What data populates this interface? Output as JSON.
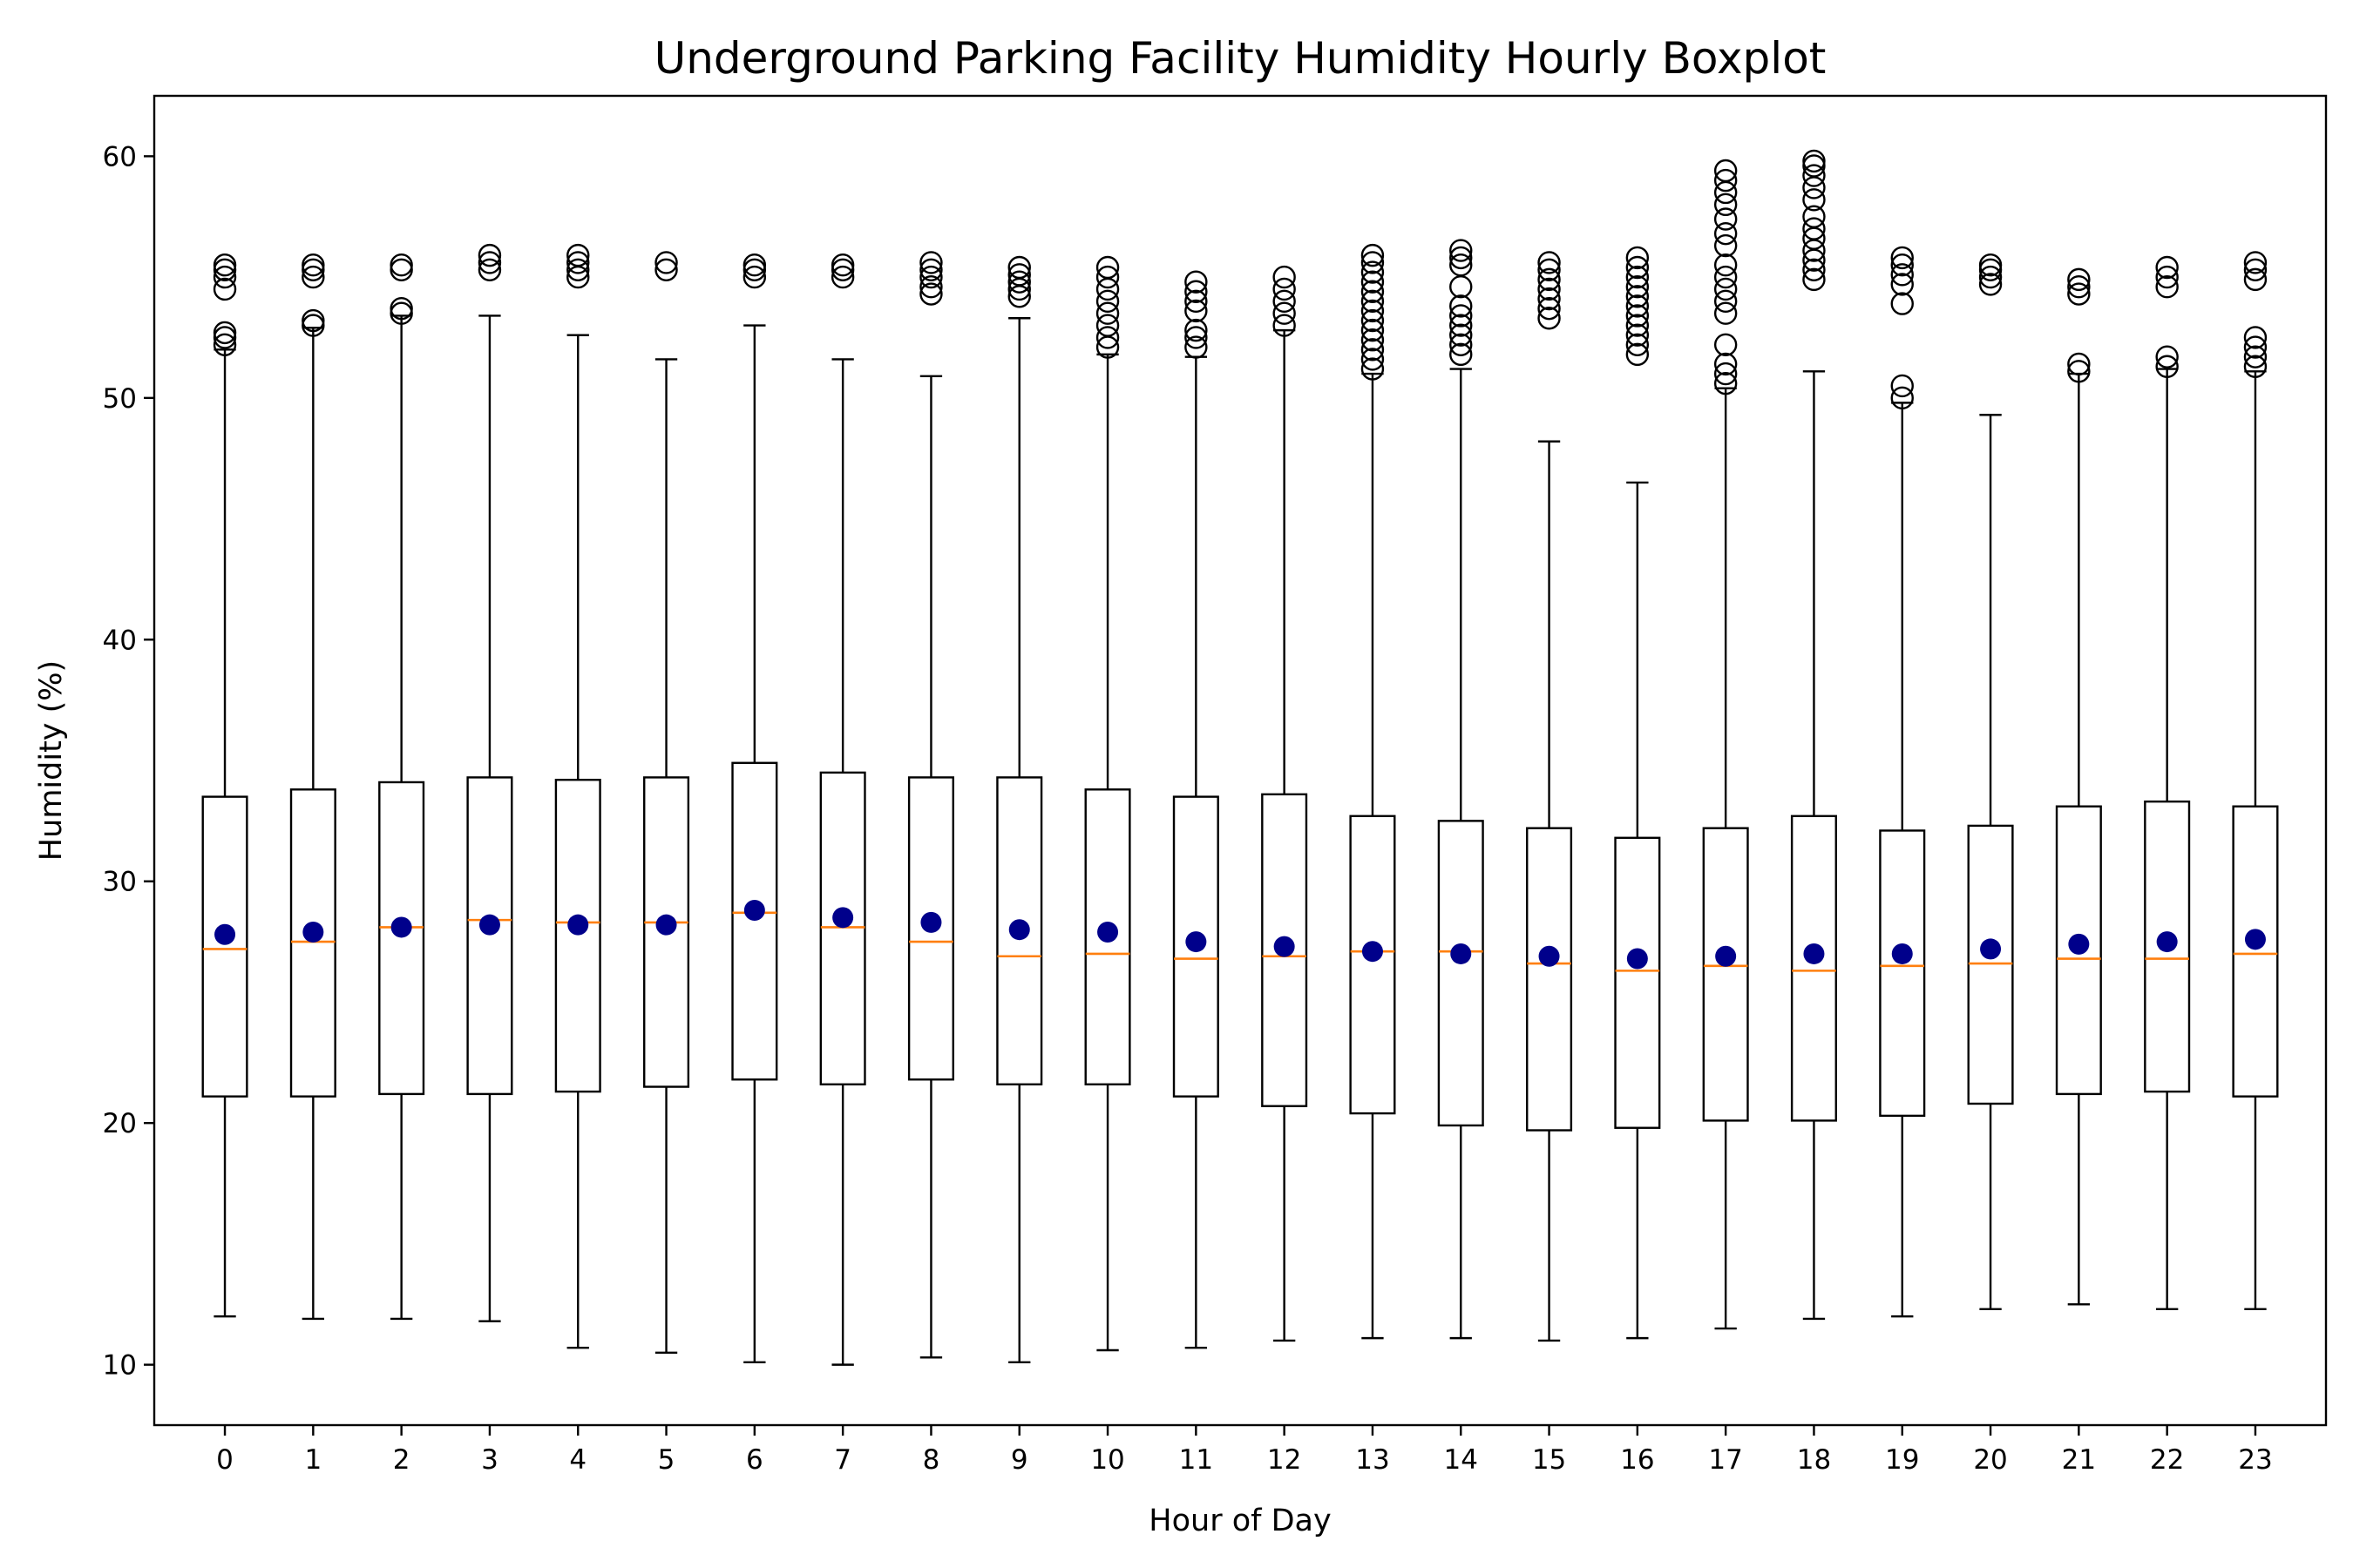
{
  "chart_data": {
    "type": "boxplot",
    "title": "Underground Parking Facility Humidity Hourly Boxplot",
    "xlabel": "Hour of Day",
    "ylabel": "Humidity (%)",
    "ylim": [
      7.5,
      62.5
    ],
    "yticks": [
      10,
      20,
      30,
      40,
      50,
      60
    ],
    "grid": false,
    "colors": {
      "box": "#000000",
      "median": "#ff7f0e",
      "mean": "#00008b",
      "flier": "#000000"
    },
    "categories": [
      "0",
      "1",
      "2",
      "3",
      "4",
      "5",
      "6",
      "7",
      "8",
      "9",
      "10",
      "11",
      "12",
      "13",
      "14",
      "15",
      "16",
      "17",
      "18",
      "19",
      "20",
      "21",
      "22",
      "23"
    ],
    "boxes": [
      {
        "whislo": 12.0,
        "q1": 21.1,
        "med": 27.2,
        "q3": 33.5,
        "whishi": 52.0,
        "mean": 27.8,
        "fliers": [
          52.2,
          52.5,
          52.7,
          54.5,
          55.0,
          55.3,
          55.5
        ]
      },
      {
        "whislo": 11.9,
        "q1": 21.1,
        "med": 27.5,
        "q3": 33.8,
        "whishi": 52.9,
        "mean": 27.9,
        "fliers": [
          53.0,
          53.2,
          55.0,
          55.3,
          55.5
        ]
      },
      {
        "whislo": 11.9,
        "q1": 21.2,
        "med": 28.1,
        "q3": 34.1,
        "whishi": 53.4,
        "mean": 28.1,
        "fliers": [
          53.5,
          53.7,
          55.3,
          55.5
        ]
      },
      {
        "whislo": 11.8,
        "q1": 21.2,
        "med": 28.4,
        "q3": 34.3,
        "whishi": 53.4,
        "mean": 28.2,
        "fliers": [
          55.3,
          55.6,
          55.9
        ]
      },
      {
        "whislo": 10.7,
        "q1": 21.3,
        "med": 28.3,
        "q3": 34.2,
        "whishi": 52.6,
        "mean": 28.2,
        "fliers": [
          55.0,
          55.3,
          55.6,
          55.9
        ]
      },
      {
        "whislo": 10.5,
        "q1": 21.5,
        "med": 28.3,
        "q3": 34.3,
        "whishi": 51.6,
        "mean": 28.2,
        "fliers": [
          55.3,
          55.6
        ]
      },
      {
        "whislo": 10.1,
        "q1": 21.8,
        "med": 28.7,
        "q3": 34.9,
        "whishi": 53.0,
        "mean": 28.8,
        "fliers": [
          55.0,
          55.3,
          55.5
        ]
      },
      {
        "whislo": 10.0,
        "q1": 21.6,
        "med": 28.1,
        "q3": 34.5,
        "whishi": 51.6,
        "mean": 28.5,
        "fliers": [
          55.0,
          55.3,
          55.5
        ]
      },
      {
        "whislo": 10.3,
        "q1": 21.8,
        "med": 27.5,
        "q3": 34.3,
        "whishi": 50.9,
        "mean": 28.3,
        "fliers": [
          54.3,
          54.6,
          55.0,
          55.3,
          55.6
        ]
      },
      {
        "whislo": 10.1,
        "q1": 21.6,
        "med": 26.9,
        "q3": 34.3,
        "whishi": 53.3,
        "mean": 28.0,
        "fliers": [
          54.2,
          54.5,
          54.8,
          55.1,
          55.4
        ]
      },
      {
        "whislo": 10.6,
        "q1": 21.6,
        "med": 27.0,
        "q3": 33.8,
        "whishi": 51.8,
        "mean": 27.9,
        "fliers": [
          52.1,
          52.5,
          53.0,
          53.5,
          54.0,
          54.5,
          55.0,
          55.4
        ]
      },
      {
        "whislo": 10.7,
        "q1": 21.1,
        "med": 26.8,
        "q3": 33.5,
        "whishi": 51.7,
        "mean": 27.5,
        "fliers": [
          52.1,
          52.5,
          52.8,
          53.6,
          54.0,
          54.4,
          54.8
        ]
      },
      {
        "whislo": 11.0,
        "q1": 20.7,
        "med": 26.9,
        "q3": 33.6,
        "whishi": 52.8,
        "mean": 27.3,
        "fliers": [
          53.0,
          53.5,
          54.0,
          54.5,
          55.0
        ]
      },
      {
        "whislo": 11.1,
        "q1": 20.4,
        "med": 27.1,
        "q3": 32.7,
        "whishi": 51.0,
        "mean": 27.1,
        "fliers": [
          51.2,
          51.6,
          52.0,
          52.4,
          52.8,
          53.2,
          53.6,
          54.0,
          54.4,
          54.8,
          55.2,
          55.6,
          55.9
        ]
      },
      {
        "whislo": 11.1,
        "q1": 19.9,
        "med": 27.1,
        "q3": 32.5,
        "whishi": 51.2,
        "mean": 27.0,
        "fliers": [
          51.8,
          52.2,
          52.6,
          53.0,
          53.4,
          53.8,
          54.6,
          55.5,
          55.8,
          56.1
        ]
      },
      {
        "whislo": 11.0,
        "q1": 19.7,
        "med": 26.6,
        "q3": 32.2,
        "whishi": 48.2,
        "mean": 26.9,
        "fliers": [
          53.3,
          53.7,
          54.1,
          54.5,
          54.9,
          55.3,
          55.6
        ]
      },
      {
        "whislo": 11.1,
        "q1": 19.8,
        "med": 26.3,
        "q3": 31.8,
        "whishi": 46.5,
        "mean": 26.8,
        "fliers": [
          51.8,
          52.2,
          52.6,
          53.0,
          53.4,
          53.8,
          54.2,
          54.6,
          55.0,
          55.4,
          55.8
        ]
      },
      {
        "whislo": 11.5,
        "q1": 20.1,
        "med": 26.5,
        "q3": 32.2,
        "whishi": 50.4,
        "mean": 26.9,
        "fliers": [
          50.6,
          51.0,
          51.4,
          52.2,
          53.5,
          54.0,
          54.5,
          55.0,
          55.5,
          56.3,
          56.8,
          57.4,
          58.0,
          58.5,
          59.0,
          59.4
        ]
      },
      {
        "whislo": 11.9,
        "q1": 20.1,
        "med": 26.3,
        "q3": 32.7,
        "whishi": 51.1,
        "mean": 27.0,
        "fliers": [
          54.9,
          55.3,
          55.7,
          56.1,
          56.6,
          57.0,
          57.5,
          58.2,
          58.7,
          59.2,
          59.6,
          59.8
        ]
      },
      {
        "whislo": 12.0,
        "q1": 20.3,
        "med": 26.5,
        "q3": 32.1,
        "whishi": 49.8,
        "mean": 27.0,
        "fliers": [
          50.0,
          50.5,
          53.9,
          54.7,
          55.1,
          55.5,
          55.8
        ]
      },
      {
        "whislo": 12.3,
        "q1": 20.8,
        "med": 26.6,
        "q3": 32.3,
        "whishi": 49.3,
        "mean": 27.2,
        "fliers": [
          54.7,
          55.0,
          55.3,
          55.5
        ]
      },
      {
        "whislo": 12.5,
        "q1": 21.2,
        "med": 26.8,
        "q3": 33.1,
        "whishi": 51.0,
        "mean": 27.4,
        "fliers": [
          51.1,
          51.4,
          54.3,
          54.6,
          54.9
        ]
      },
      {
        "whislo": 12.3,
        "q1": 21.3,
        "med": 26.8,
        "q3": 33.3,
        "whishi": 51.2,
        "mean": 27.5,
        "fliers": [
          51.3,
          51.7,
          54.6,
          55.0,
          55.4
        ]
      },
      {
        "whislo": 12.3,
        "q1": 21.1,
        "med": 27.0,
        "q3": 33.1,
        "whishi": 51.1,
        "mean": 27.6,
        "fliers": [
          51.3,
          51.7,
          52.1,
          52.5,
          54.9,
          55.3,
          55.6
        ]
      }
    ]
  }
}
